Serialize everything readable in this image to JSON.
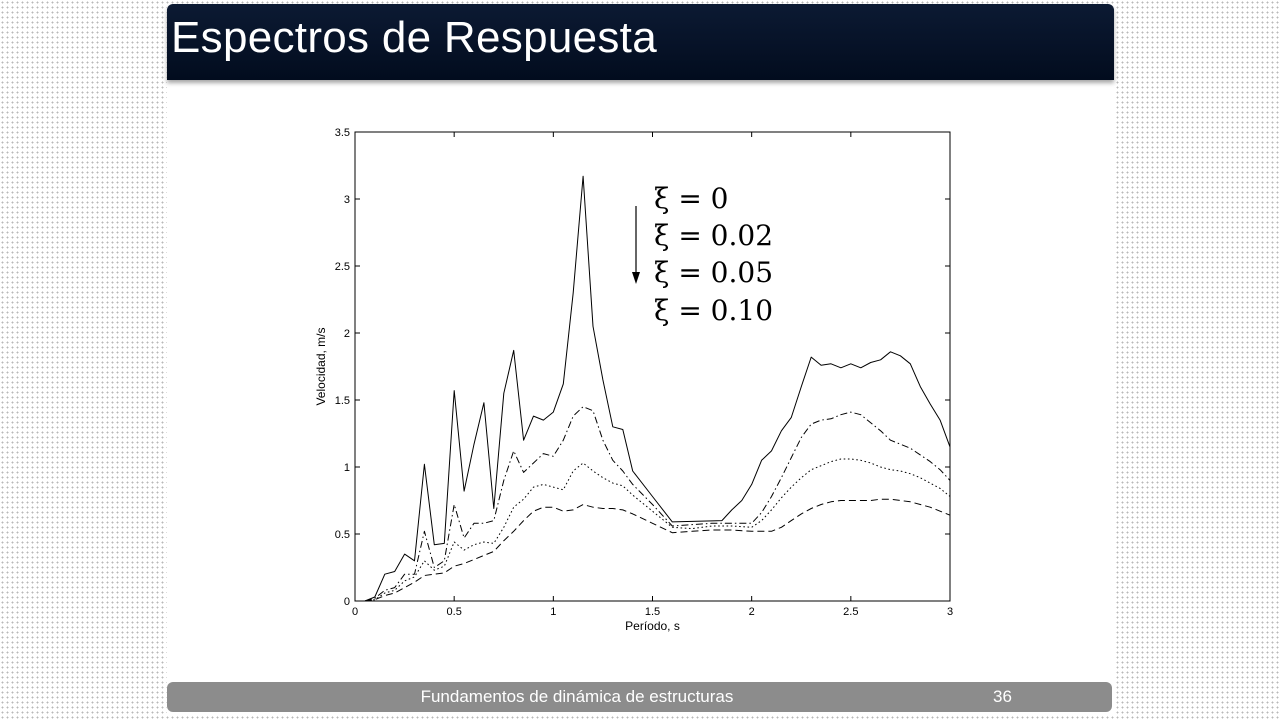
{
  "slide": {
    "title": "Espectros de Respuesta",
    "footer_text": "Fundamentos de dinámica de estructuras",
    "page_number": "36"
  },
  "chart_data": {
    "type": "line",
    "title": "",
    "xlabel": "Período, s",
    "ylabel": "Velocidad, m/s",
    "xlim": [
      0,
      3
    ],
    "ylim": [
      0,
      3.5
    ],
    "xticks": [
      0,
      0.5,
      1,
      1.5,
      2,
      2.5,
      3
    ],
    "xtick_labels": [
      "0",
      "0.5",
      "1",
      "1.5",
      "2",
      "2.5",
      "3"
    ],
    "yticks": [
      0,
      0.5,
      1,
      1.5,
      2,
      2.5,
      3,
      3.5
    ],
    "ytick_labels": [
      "0",
      "0.5",
      "1",
      "1.5",
      "2",
      "2.5",
      "3",
      "3.5"
    ],
    "grid": false,
    "legend_position": "top-center",
    "legend_arrow": "down",
    "series": [
      {
        "name": "ξ = 0",
        "dash": "solid",
        "points": [
          [
            0.05,
            0
          ],
          [
            0.1,
            0.03
          ],
          [
            0.15,
            0.2
          ],
          [
            0.2,
            0.22
          ],
          [
            0.25,
            0.35
          ],
          [
            0.3,
            0.3
          ],
          [
            0.35,
            1.02
          ],
          [
            0.4,
            0.42
          ],
          [
            0.45,
            0.43
          ],
          [
            0.5,
            1.57
          ],
          [
            0.55,
            0.82
          ],
          [
            0.6,
            1.17
          ],
          [
            0.65,
            1.48
          ],
          [
            0.7,
            0.69
          ],
          [
            0.75,
            1.55
          ],
          [
            0.8,
            1.87
          ],
          [
            0.85,
            1.2
          ],
          [
            0.9,
            1.38
          ],
          [
            0.95,
            1.35
          ],
          [
            1.0,
            1.41
          ],
          [
            1.05,
            1.62
          ],
          [
            1.1,
            2.3
          ],
          [
            1.15,
            3.17
          ],
          [
            1.2,
            2.05
          ],
          [
            1.25,
            1.65
          ],
          [
            1.3,
            1.3
          ],
          [
            1.35,
            1.28
          ],
          [
            1.4,
            0.97
          ],
          [
            1.5,
            0.78
          ],
          [
            1.6,
            0.59
          ],
          [
            1.85,
            0.6
          ],
          [
            1.9,
            0.68
          ],
          [
            1.95,
            0.75
          ],
          [
            2.0,
            0.87
          ],
          [
            2.05,
            1.05
          ],
          [
            2.1,
            1.12
          ],
          [
            2.15,
            1.27
          ],
          [
            2.2,
            1.37
          ],
          [
            2.25,
            1.6
          ],
          [
            2.3,
            1.82
          ],
          [
            2.35,
            1.76
          ],
          [
            2.4,
            1.77
          ],
          [
            2.45,
            1.74
          ],
          [
            2.5,
            1.77
          ],
          [
            2.55,
            1.74
          ],
          [
            2.6,
            1.78
          ],
          [
            2.65,
            1.8
          ],
          [
            2.7,
            1.86
          ],
          [
            2.75,
            1.83
          ],
          [
            2.8,
            1.77
          ],
          [
            2.85,
            1.6
          ],
          [
            2.9,
            1.47
          ],
          [
            2.95,
            1.35
          ],
          [
            3.0,
            1.15
          ]
        ]
      },
      {
        "name": "ξ = 0.02",
        "dash": "dashdot",
        "points": [
          [
            0.05,
            0
          ],
          [
            0.1,
            0.02
          ],
          [
            0.15,
            0.08
          ],
          [
            0.2,
            0.1
          ],
          [
            0.25,
            0.2
          ],
          [
            0.3,
            0.2
          ],
          [
            0.35,
            0.52
          ],
          [
            0.4,
            0.25
          ],
          [
            0.45,
            0.3
          ],
          [
            0.5,
            0.72
          ],
          [
            0.55,
            0.47
          ],
          [
            0.6,
            0.58
          ],
          [
            0.65,
            0.58
          ],
          [
            0.7,
            0.6
          ],
          [
            0.75,
            0.9
          ],
          [
            0.8,
            1.12
          ],
          [
            0.85,
            0.96
          ],
          [
            0.9,
            1.03
          ],
          [
            0.95,
            1.1
          ],
          [
            1.0,
            1.08
          ],
          [
            1.05,
            1.2
          ],
          [
            1.1,
            1.38
          ],
          [
            1.15,
            1.45
          ],
          [
            1.2,
            1.42
          ],
          [
            1.25,
            1.2
          ],
          [
            1.3,
            1.05
          ],
          [
            1.35,
            0.97
          ],
          [
            1.4,
            0.87
          ],
          [
            1.5,
            0.72
          ],
          [
            1.6,
            0.56
          ],
          [
            1.7,
            0.57
          ],
          [
            1.8,
            0.58
          ],
          [
            1.9,
            0.58
          ],
          [
            2.0,
            0.58
          ],
          [
            2.05,
            0.66
          ],
          [
            2.1,
            0.78
          ],
          [
            2.15,
            0.92
          ],
          [
            2.2,
            1.07
          ],
          [
            2.25,
            1.22
          ],
          [
            2.3,
            1.32
          ],
          [
            2.35,
            1.35
          ],
          [
            2.4,
            1.36
          ],
          [
            2.45,
            1.39
          ],
          [
            2.5,
            1.41
          ],
          [
            2.55,
            1.39
          ],
          [
            2.6,
            1.33
          ],
          [
            2.65,
            1.27
          ],
          [
            2.7,
            1.2
          ],
          [
            2.75,
            1.17
          ],
          [
            2.8,
            1.14
          ],
          [
            2.85,
            1.09
          ],
          [
            2.9,
            1.04
          ],
          [
            2.95,
            0.98
          ],
          [
            3.0,
            0.9
          ]
        ]
      },
      {
        "name": "ξ = 0.05",
        "dash": "dotted",
        "points": [
          [
            0.05,
            0
          ],
          [
            0.1,
            0.01
          ],
          [
            0.15,
            0.06
          ],
          [
            0.2,
            0.08
          ],
          [
            0.25,
            0.15
          ],
          [
            0.3,
            0.18
          ],
          [
            0.35,
            0.3
          ],
          [
            0.4,
            0.23
          ],
          [
            0.45,
            0.26
          ],
          [
            0.5,
            0.44
          ],
          [
            0.55,
            0.38
          ],
          [
            0.6,
            0.42
          ],
          [
            0.65,
            0.44
          ],
          [
            0.7,
            0.43
          ],
          [
            0.75,
            0.55
          ],
          [
            0.8,
            0.7
          ],
          [
            0.85,
            0.76
          ],
          [
            0.9,
            0.85
          ],
          [
            0.95,
            0.87
          ],
          [
            1.0,
            0.85
          ],
          [
            1.05,
            0.83
          ],
          [
            1.1,
            0.97
          ],
          [
            1.15,
            1.03
          ],
          [
            1.2,
            0.97
          ],
          [
            1.25,
            0.92
          ],
          [
            1.3,
            0.88
          ],
          [
            1.35,
            0.86
          ],
          [
            1.4,
            0.79
          ],
          [
            1.5,
            0.67
          ],
          [
            1.6,
            0.55
          ],
          [
            1.7,
            0.54
          ],
          [
            1.8,
            0.56
          ],
          [
            1.9,
            0.56
          ],
          [
            2.0,
            0.55
          ],
          [
            2.05,
            0.6
          ],
          [
            2.1,
            0.68
          ],
          [
            2.15,
            0.77
          ],
          [
            2.2,
            0.85
          ],
          [
            2.25,
            0.92
          ],
          [
            2.3,
            0.98
          ],
          [
            2.35,
            1.01
          ],
          [
            2.4,
            1.04
          ],
          [
            2.45,
            1.06
          ],
          [
            2.5,
            1.06
          ],
          [
            2.55,
            1.05
          ],
          [
            2.6,
            1.03
          ],
          [
            2.65,
            1.0
          ],
          [
            2.7,
            0.98
          ],
          [
            2.75,
            0.97
          ],
          [
            2.8,
            0.95
          ],
          [
            2.85,
            0.92
          ],
          [
            2.9,
            0.88
          ],
          [
            2.95,
            0.84
          ],
          [
            3.0,
            0.78
          ]
        ]
      },
      {
        "name": "ξ = 0.10",
        "dash": "dashed",
        "points": [
          [
            0.05,
            0
          ],
          [
            0.1,
            0.01
          ],
          [
            0.15,
            0.04
          ],
          [
            0.2,
            0.06
          ],
          [
            0.25,
            0.1
          ],
          [
            0.3,
            0.14
          ],
          [
            0.35,
            0.19
          ],
          [
            0.4,
            0.2
          ],
          [
            0.45,
            0.21
          ],
          [
            0.5,
            0.26
          ],
          [
            0.55,
            0.28
          ],
          [
            0.6,
            0.31
          ],
          [
            0.65,
            0.34
          ],
          [
            0.7,
            0.37
          ],
          [
            0.75,
            0.45
          ],
          [
            0.8,
            0.52
          ],
          [
            0.85,
            0.6
          ],
          [
            0.9,
            0.67
          ],
          [
            0.95,
            0.7
          ],
          [
            1.0,
            0.7
          ],
          [
            1.05,
            0.67
          ],
          [
            1.1,
            0.68
          ],
          [
            1.15,
            0.72
          ],
          [
            1.2,
            0.7
          ],
          [
            1.25,
            0.69
          ],
          [
            1.3,
            0.69
          ],
          [
            1.35,
            0.68
          ],
          [
            1.4,
            0.65
          ],
          [
            1.5,
            0.58
          ],
          [
            1.6,
            0.51
          ],
          [
            1.7,
            0.52
          ],
          [
            1.8,
            0.53
          ],
          [
            1.9,
            0.53
          ],
          [
            2.0,
            0.52
          ],
          [
            2.1,
            0.52
          ],
          [
            2.15,
            0.55
          ],
          [
            2.2,
            0.6
          ],
          [
            2.25,
            0.65
          ],
          [
            2.3,
            0.69
          ],
          [
            2.35,
            0.72
          ],
          [
            2.4,
            0.74
          ],
          [
            2.45,
            0.75
          ],
          [
            2.5,
            0.75
          ],
          [
            2.55,
            0.75
          ],
          [
            2.6,
            0.75
          ],
          [
            2.65,
            0.76
          ],
          [
            2.7,
            0.76
          ],
          [
            2.75,
            0.75
          ],
          [
            2.8,
            0.74
          ],
          [
            2.85,
            0.72
          ],
          [
            2.9,
            0.7
          ],
          [
            2.95,
            0.67
          ],
          [
            3.0,
            0.64
          ]
        ]
      }
    ]
  }
}
